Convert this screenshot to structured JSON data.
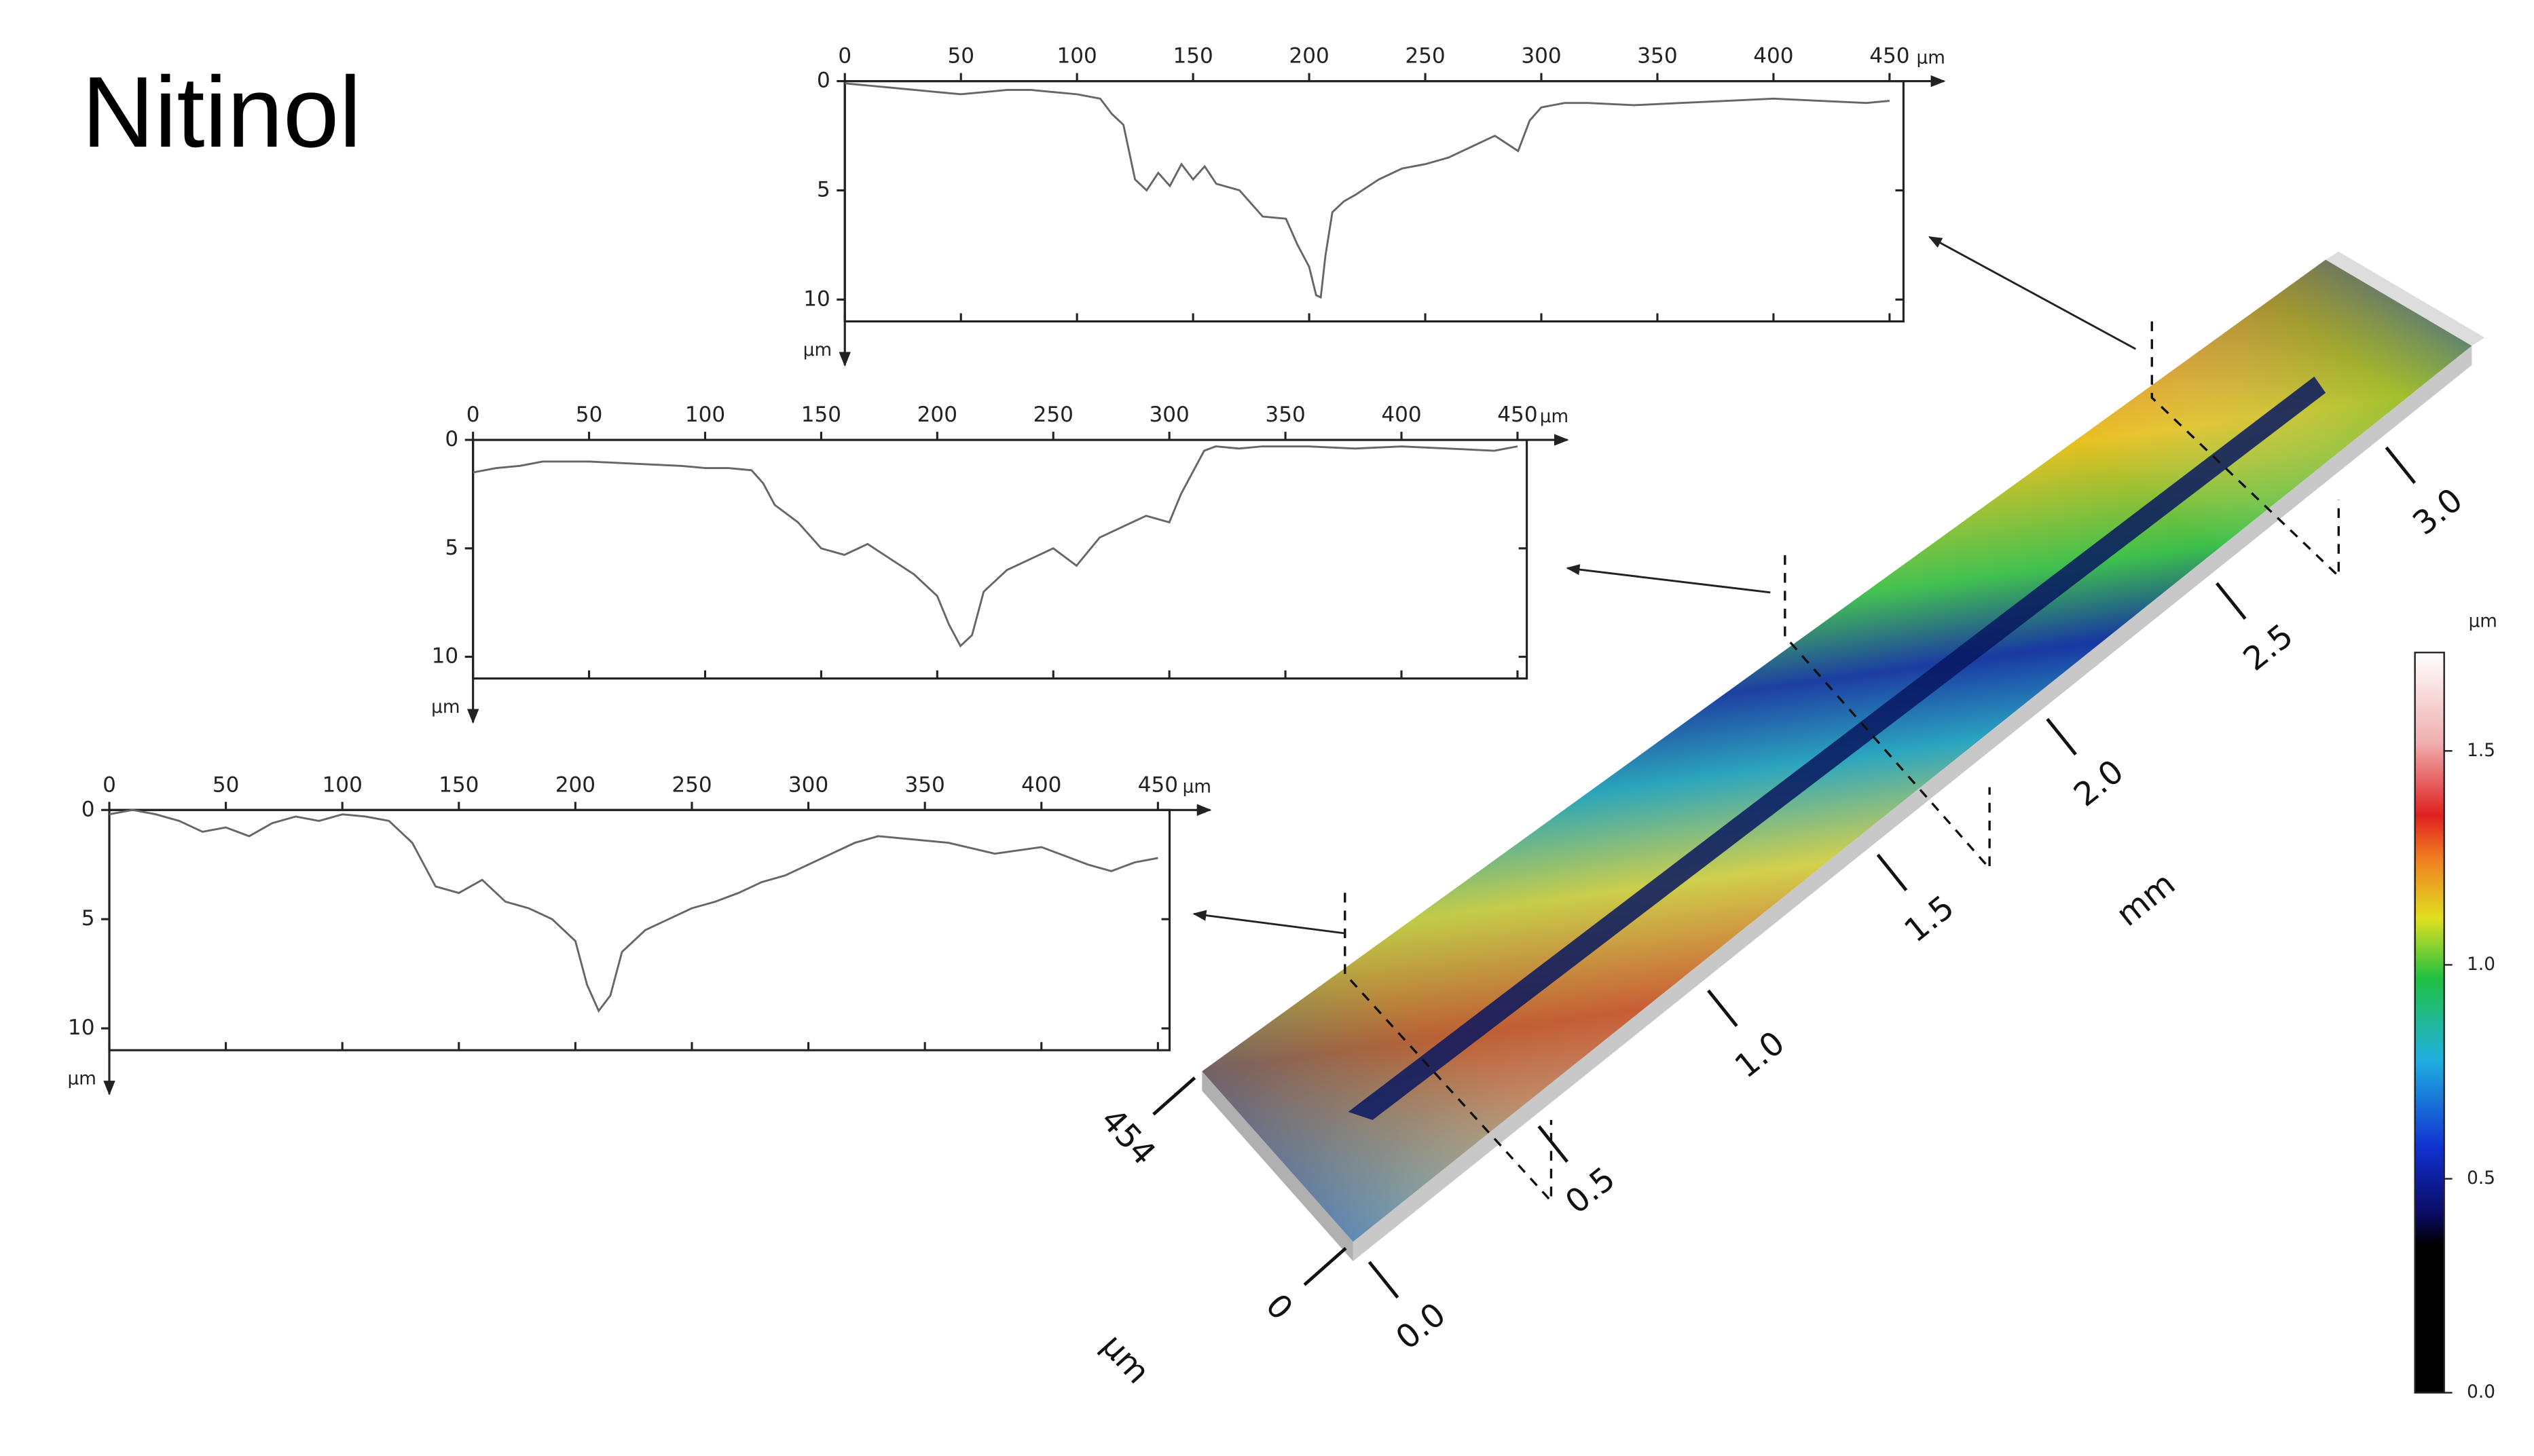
{
  "title": "Nitinol",
  "chart_data": [
    {
      "type": "line",
      "color": "#666666",
      "x": [
        0,
        10,
        20,
        30,
        40,
        50,
        60,
        70,
        80,
        90,
        100,
        110,
        115,
        120,
        125,
        130,
        135,
        140,
        145,
        150,
        155,
        160,
        170,
        180,
        190,
        195,
        200,
        203,
        205,
        207,
        210,
        215,
        220,
        230,
        240,
        250,
        260,
        270,
        280,
        290,
        295,
        300,
        310,
        320,
        340,
        360,
        380,
        400,
        420,
        440,
        450
      ],
      "values": [
        0.1,
        0.2,
        0.3,
        0.4,
        0.5,
        0.6,
        0.5,
        0.4,
        0.4,
        0.5,
        0.6,
        0.8,
        1.5,
        2.0,
        4.5,
        5.0,
        4.2,
        4.8,
        3.8,
        4.5,
        3.9,
        4.7,
        5.0,
        6.2,
        6.3,
        7.5,
        8.5,
        9.8,
        9.9,
        8.0,
        6.0,
        5.5,
        5.2,
        4.5,
        4.0,
        3.8,
        3.5,
        3.0,
        2.5,
        3.2,
        1.8,
        1.2,
        1.0,
        1.0,
        1.1,
        1.0,
        0.9,
        0.8,
        0.9,
        1.0,
        0.9
      ],
      "xlim": [
        0,
        456
      ],
      "xticks": [
        0,
        50,
        100,
        150,
        200,
        250,
        300,
        350,
        400,
        450
      ],
      "xlabel": "µm",
      "ylim": [
        0,
        11
      ],
      "yticks": [
        0,
        5,
        10
      ],
      "ylabel": "µm"
    },
    {
      "type": "line",
      "color": "#666666",
      "x": [
        0,
        10,
        20,
        30,
        50,
        70,
        90,
        100,
        110,
        120,
        125,
        130,
        140,
        150,
        160,
        170,
        180,
        190,
        200,
        205,
        210,
        215,
        220,
        230,
        240,
        250,
        260,
        270,
        280,
        290,
        300,
        305,
        310,
        315,
        320,
        330,
        340,
        360,
        380,
        400,
        420,
        440,
        450
      ],
      "values": [
        1.5,
        1.3,
        1.2,
        1.0,
        1.0,
        1.1,
        1.2,
        1.3,
        1.3,
        1.4,
        2.0,
        3.0,
        3.8,
        5.0,
        5.3,
        4.8,
        5.5,
        6.2,
        7.2,
        8.5,
        9.5,
        9.0,
        7.0,
        6.0,
        5.5,
        5.0,
        5.8,
        4.5,
        4.0,
        3.5,
        3.8,
        2.5,
        1.5,
        0.5,
        0.3,
        0.4,
        0.3,
        0.3,
        0.4,
        0.3,
        0.4,
        0.5,
        0.3
      ],
      "xlim": [
        0,
        454
      ],
      "xticks": [
        0,
        50,
        100,
        150,
        200,
        250,
        300,
        350,
        400,
        450
      ],
      "xlabel": "µm",
      "ylim": [
        0,
        11
      ],
      "yticks": [
        0,
        5,
        10
      ],
      "ylabel": "µm"
    },
    {
      "type": "line",
      "color": "#666666",
      "x": [
        0,
        10,
        20,
        30,
        40,
        50,
        60,
        70,
        80,
        90,
        100,
        110,
        120,
        130,
        140,
        150,
        160,
        170,
        180,
        190,
        200,
        205,
        210,
        215,
        220,
        230,
        240,
        250,
        260,
        270,
        280,
        290,
        300,
        310,
        320,
        330,
        340,
        360,
        380,
        400,
        420,
        430,
        440,
        450
      ],
      "values": [
        0.2,
        0,
        0.2,
        0.5,
        1.0,
        0.8,
        1.2,
        0.6,
        0.3,
        0.5,
        0.2,
        0.3,
        0.5,
        1.5,
        3.5,
        3.8,
        3.2,
        4.2,
        4.5,
        5.0,
        6.0,
        8.0,
        9.2,
        8.5,
        6.5,
        5.5,
        5.0,
        4.5,
        4.2,
        3.8,
        3.3,
        3.0,
        2.5,
        2.0,
        1.5,
        1.2,
        1.3,
        1.5,
        2.0,
        1.7,
        2.5,
        2.8,
        2.4,
        2.2
      ],
      "xlim": [
        0,
        455
      ],
      "xticks": [
        0,
        50,
        100,
        150,
        200,
        250,
        300,
        350,
        400,
        450
      ],
      "xlabel": "µm",
      "ylim": [
        0,
        11
      ],
      "yticks": [
        0,
        5,
        10
      ],
      "ylabel": "µm"
    },
    {
      "type": "surface",
      "xlabel": "mm",
      "xlim": [
        0,
        3.3
      ],
      "xticks": [
        {
          "value": 0,
          "label": "0.0"
        },
        {
          "value": 0.5,
          "label": "0.5"
        },
        {
          "value": 1,
          "label": "1.0"
        },
        {
          "value": 1.5,
          "label": "1.5"
        },
        {
          "value": 2,
          "label": "2.0"
        },
        {
          "value": 2.5,
          "label": "2.5"
        },
        {
          "value": 3,
          "label": "3.0"
        }
      ],
      "ylabel": "µm",
      "ylim": [
        0,
        454
      ],
      "yticks": [
        0,
        454
      ],
      "colorbar": {
        "label": "µm",
        "lim": [
          0,
          1.73
        ],
        "ticks": [
          {
            "value": 0,
            "label": "0.0"
          },
          {
            "value": 0.5,
            "label": "0.5"
          },
          {
            "value": 1,
            "label": "1.0"
          },
          {
            "value": 1.5,
            "label": "1.5"
          }
        ]
      }
    }
  ]
}
